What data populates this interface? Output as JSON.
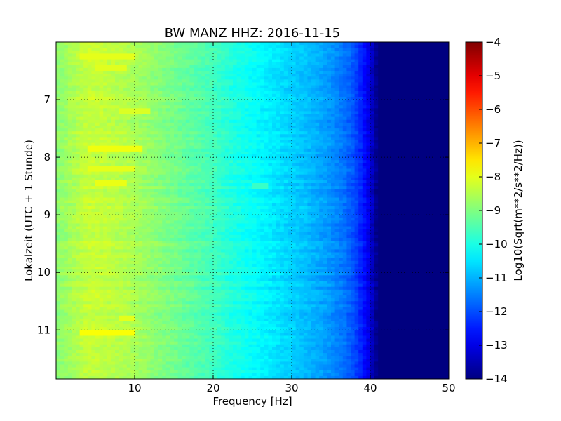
{
  "chart_data": {
    "type": "heatmap",
    "title": "BW MANZ HHZ: 2016-11-15",
    "xlabel": "Frequency [Hz]",
    "ylabel": "Lokalzeit (UTC + 1 Stunde)",
    "colorbar_label": "Log10(Sqrt(m**2/s**2/Hz))",
    "colormap": "jet",
    "xlim": [
      0,
      50
    ],
    "ylim": [
      6,
      11.85
    ],
    "y_inverted": true,
    "x_ticks": [
      10,
      20,
      30,
      40,
      50
    ],
    "x_tick_labels": [
      "10",
      "20",
      "30",
      "40",
      "50"
    ],
    "y_ticks": [
      7,
      8,
      9,
      10,
      11
    ],
    "y_tick_labels": [
      "7",
      "8",
      "9",
      "10",
      "11"
    ],
    "clim": [
      -14,
      -4
    ],
    "colorbar_ticks": [
      -4,
      -5,
      -6,
      -7,
      -8,
      -9,
      -10,
      -11,
      -12,
      -13,
      -14
    ],
    "colorbar_tick_labels": [
      "−4",
      "−5",
      "−6",
      "−7",
      "−8",
      "−9",
      "−10",
      "−11",
      "−12",
      "−13",
      "−14"
    ],
    "grid": true,
    "spectrum_profile": {
      "frequency": [
        0,
        2,
        4,
        6,
        8,
        10,
        12,
        15,
        18,
        20,
        22,
        25,
        28,
        30,
        32,
        35,
        37,
        38,
        39,
        40,
        40.5,
        41,
        42,
        45,
        50
      ],
      "value": [
        -8.9,
        -8.6,
        -8.3,
        -8.35,
        -8.45,
        -8.6,
        -8.8,
        -9.1,
        -9.4,
        -9.6,
        -9.9,
        -10.2,
        -10.5,
        -10.7,
        -10.9,
        -11.3,
        -11.7,
        -12.0,
        -12.5,
        -13.1,
        -13.6,
        -14.0,
        -14.0,
        -14.0,
        -14.0
      ]
    },
    "bright_bands": [
      {
        "time": 6.25,
        "f_start": 3,
        "f_end": 10,
        "value": -8.0
      },
      {
        "time": 6.45,
        "f_start": 5,
        "f_end": 9,
        "value": -8.05
      },
      {
        "time": 7.2,
        "f_start": 8,
        "f_end": 12,
        "value": -8.1
      },
      {
        "time": 7.85,
        "f_start": 4,
        "f_end": 11,
        "value": -7.9
      },
      {
        "time": 8.2,
        "f_start": 4,
        "f_end": 10,
        "value": -8.0
      },
      {
        "time": 8.45,
        "f_start": 5,
        "f_end": 9,
        "value": -7.95
      },
      {
        "time": 8.5,
        "f_start": 25,
        "f_end": 27,
        "value": -9.7
      },
      {
        "time": 10.8,
        "f_start": 8,
        "f_end": 10,
        "value": -8.0
      },
      {
        "time": 11.05,
        "f_start": 3,
        "f_end": 10,
        "value": -7.8
      }
    ]
  }
}
